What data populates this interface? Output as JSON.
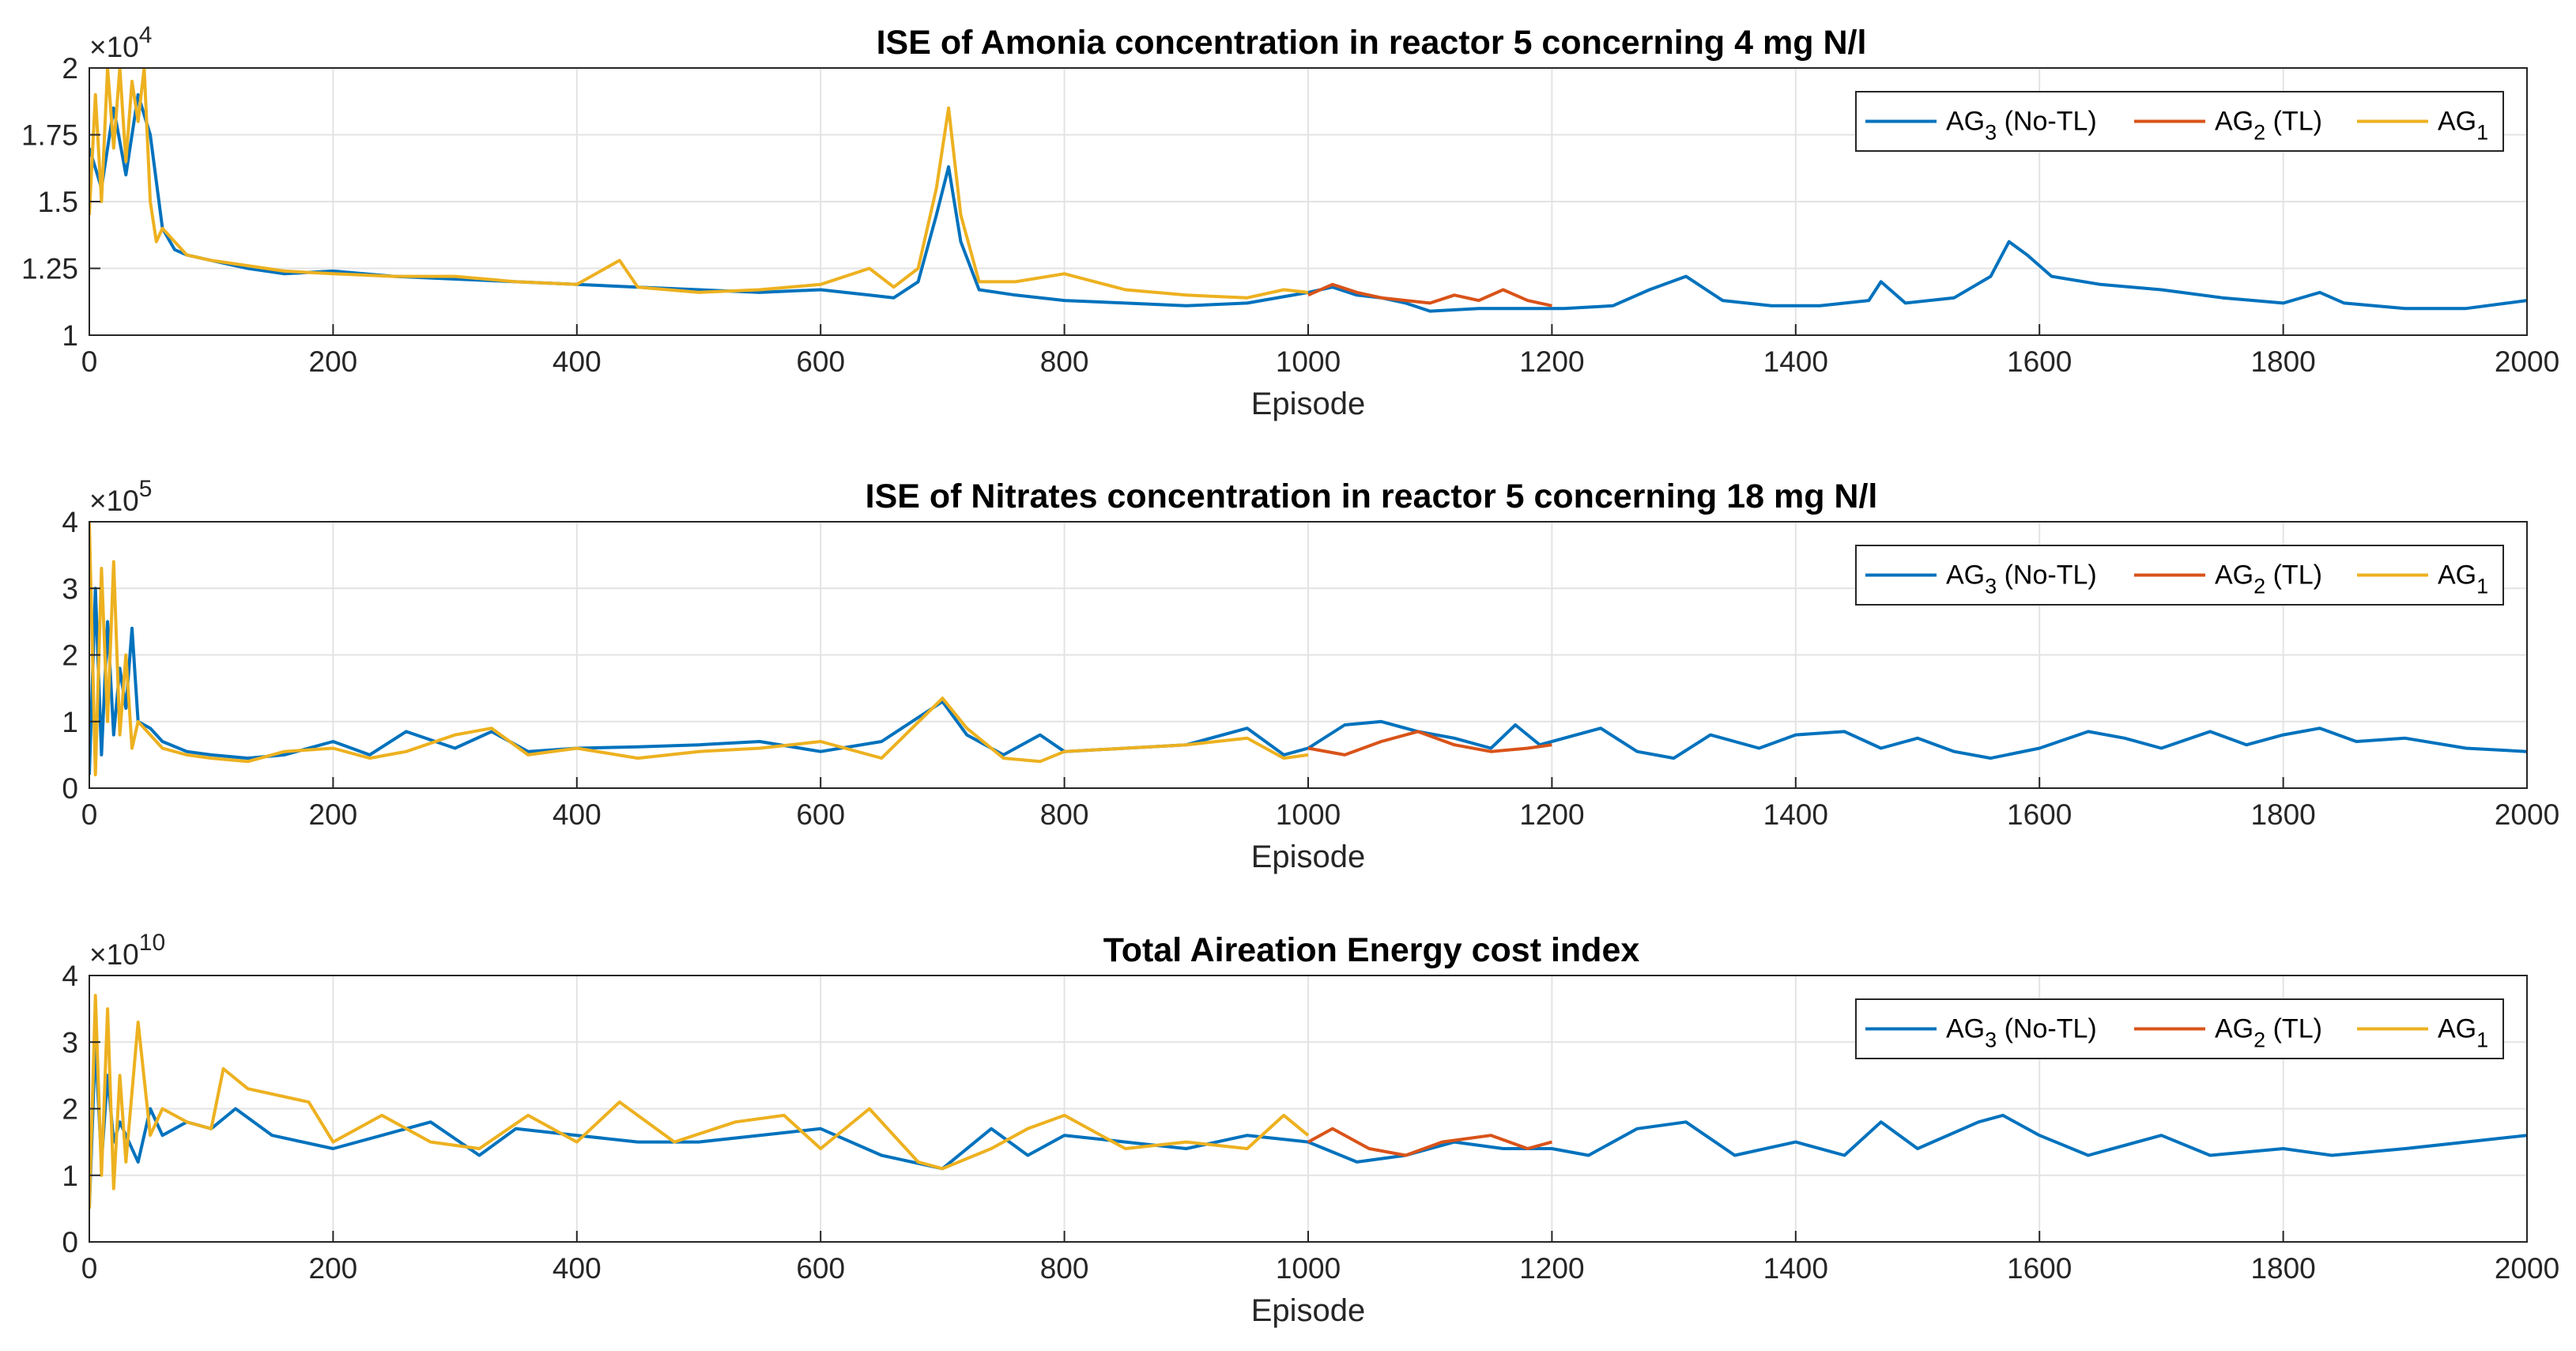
{
  "chart_data": [
    {
      "type": "line",
      "title": "ISE of Amonia concentration in reactor 5 concerning 4 mg N/l",
      "xlabel": "Episode",
      "ylabel": "",
      "xlim": [
        0,
        2000
      ],
      "ylim": [
        10000,
        20000
      ],
      "multiplier_base": "10",
      "multiplier_exp": "4",
      "xticks": [
        0,
        200,
        400,
        600,
        800,
        1000,
        1200,
        1400,
        1600,
        1800,
        2000
      ],
      "xtick_labels": [
        "0",
        "200",
        "400",
        "600",
        "800",
        "1000",
        "1200",
        "1400",
        "1600",
        "1800",
        "2000"
      ],
      "yticks": [
        10000,
        12500,
        15000,
        17500,
        20000
      ],
      "ytick_labels": [
        "1",
        "1.25",
        "1.5",
        "1.75",
        "2"
      ],
      "grid": true,
      "legend_position": "top-right",
      "series": [
        {
          "name": "AG3 (No-TL)",
          "label_main": "AG",
          "label_sub": "3",
          "label_suffix": " (No-TL)",
          "color": "#0072BD",
          "x": [
            0,
            10,
            20,
            30,
            40,
            50,
            60,
            70,
            80,
            100,
            130,
            160,
            200,
            250,
            300,
            350,
            400,
            450,
            500,
            550,
            600,
            640,
            660,
            680,
            695,
            705,
            715,
            730,
            760,
            800,
            850,
            900,
            950,
            1000,
            1020,
            1040,
            1060,
            1080,
            1100,
            1140,
            1180,
            1210,
            1250,
            1280,
            1310,
            1340,
            1380,
            1420,
            1460,
            1470,
            1490,
            1530,
            1560,
            1575,
            1590,
            1610,
            1650,
            1700,
            1750,
            1800,
            1830,
            1850,
            1900,
            1950,
            2000
          ],
          "y": [
            17000,
            15500,
            18500,
            16000,
            19000,
            17500,
            14000,
            13200,
            13000,
            12800,
            12500,
            12300,
            12400,
            12200,
            12100,
            12000,
            11900,
            11800,
            11700,
            11600,
            11700,
            11500,
            11400,
            12000,
            14500,
            16300,
            13500,
            11700,
            11500,
            11300,
            11200,
            11100,
            11200,
            11600,
            11800,
            11500,
            11400,
            11200,
            10900,
            11000,
            11000,
            11000,
            11100,
            11700,
            12200,
            11300,
            11100,
            11100,
            11300,
            12000,
            11200,
            11400,
            12200,
            13500,
            13000,
            12200,
            11900,
            11700,
            11400,
            11200,
            11600,
            11200,
            11000,
            11000,
            11300
          ]
        },
        {
          "name": "AG2 (TL)",
          "label_main": "AG",
          "label_sub": "2",
          "label_suffix": " (TL)",
          "color": "#D95319",
          "x": [
            1000,
            1020,
            1040,
            1060,
            1080,
            1100,
            1120,
            1140,
            1160,
            1180,
            1200
          ],
          "y": [
            11500,
            11900,
            11600,
            11400,
            11300,
            11200,
            11500,
            11300,
            11700,
            11300,
            11100
          ]
        },
        {
          "name": "AG1",
          "label_main": "AG",
          "label_sub": "1",
          "label_suffix": "",
          "color": "#EDB120",
          "x": [
            0,
            5,
            10,
            15,
            20,
            25,
            30,
            35,
            40,
            45,
            50,
            55,
            60,
            70,
            80,
            100,
            130,
            160,
            200,
            250,
            300,
            350,
            400,
            435,
            450,
            500,
            550,
            600,
            640,
            660,
            680,
            695,
            705,
            715,
            730,
            760,
            800,
            850,
            900,
            950,
            980,
            1000
          ],
          "y": [
            14500,
            19000,
            15000,
            20000,
            17000,
            20000,
            16500,
            19500,
            18000,
            20000,
            15000,
            13500,
            14000,
            13500,
            13000,
            12800,
            12600,
            12400,
            12300,
            12200,
            12200,
            12000,
            11900,
            12800,
            11800,
            11600,
            11700,
            11900,
            12500,
            11800,
            12500,
            15500,
            18500,
            14500,
            12000,
            12000,
            12300,
            11700,
            11500,
            11400,
            11700,
            11600
          ]
        }
      ]
    },
    {
      "type": "line",
      "title": "ISE of Nitrates concentration in reactor 5 concerning 18 mg N/l",
      "xlabel": "Episode",
      "ylabel": "",
      "xlim": [
        0,
        2000
      ],
      "ylim": [
        0,
        400000
      ],
      "multiplier_base": "10",
      "multiplier_exp": "5",
      "xticks": [
        0,
        200,
        400,
        600,
        800,
        1000,
        1200,
        1400,
        1600,
        1800,
        2000
      ],
      "xtick_labels": [
        "0",
        "200",
        "400",
        "600",
        "800",
        "1000",
        "1200",
        "1400",
        "1600",
        "1800",
        "2000"
      ],
      "yticks": [
        0,
        100000,
        200000,
        300000,
        400000
      ],
      "ytick_labels": [
        "0",
        "1",
        "2",
        "3",
        "4"
      ],
      "grid": true,
      "legend_position": "top-right",
      "series": [
        {
          "name": "AG3 (No-TL)",
          "label_main": "AG",
          "label_sub": "3",
          "label_suffix": " (No-TL)",
          "color": "#0072BD",
          "x": [
            0,
            5,
            10,
            15,
            20,
            25,
            30,
            35,
            40,
            50,
            60,
            80,
            100,
            130,
            160,
            200,
            230,
            260,
            300,
            330,
            360,
            400,
            450,
            500,
            550,
            600,
            650,
            700,
            720,
            750,
            780,
            800,
            850,
            900,
            950,
            980,
            1000,
            1030,
            1060,
            1090,
            1120,
            1150,
            1170,
            1190,
            1220,
            1240,
            1270,
            1300,
            1330,
            1370,
            1400,
            1440,
            1470,
            1500,
            1530,
            1560,
            1600,
            1640,
            1670,
            1700,
            1740,
            1770,
            1800,
            1830,
            1860,
            1900,
            1950,
            2000
          ],
          "y": [
            20000,
            300000,
            50000,
            250000,
            80000,
            180000,
            120000,
            240000,
            100000,
            90000,
            70000,
            55000,
            50000,
            45000,
            50000,
            70000,
            50000,
            85000,
            60000,
            85000,
            55000,
            60000,
            62000,
            65000,
            70000,
            55000,
            70000,
            130000,
            80000,
            50000,
            80000,
            55000,
            60000,
            65000,
            90000,
            50000,
            60000,
            95000,
            100000,
            85000,
            75000,
            60000,
            95000,
            65000,
            80000,
            90000,
            55000,
            45000,
            80000,
            60000,
            80000,
            85000,
            60000,
            75000,
            55000,
            45000,
            60000,
            85000,
            75000,
            60000,
            85000,
            65000,
            80000,
            90000,
            70000,
            75000,
            60000,
            55000
          ]
        },
        {
          "name": "AG2 (TL)",
          "label_main": "AG",
          "label_sub": "2",
          "label_suffix": " (TL)",
          "color": "#D95319",
          "x": [
            1000,
            1030,
            1060,
            1090,
            1120,
            1150,
            1180,
            1200
          ],
          "y": [
            60000,
            50000,
            70000,
            85000,
            65000,
            55000,
            60000,
            65000
          ]
        },
        {
          "name": "AG1",
          "label_main": "AG",
          "label_sub": "1",
          "label_suffix": "",
          "color": "#EDB120",
          "x": [
            0,
            5,
            10,
            15,
            20,
            25,
            30,
            35,
            40,
            50,
            60,
            80,
            100,
            130,
            160,
            200,
            230,
            260,
            300,
            330,
            360,
            400,
            450,
            500,
            550,
            600,
            650,
            700,
            720,
            750,
            780,
            800,
            850,
            900,
            950,
            980,
            1000
          ],
          "y": [
            400000,
            20000,
            330000,
            100000,
            340000,
            80000,
            200000,
            60000,
            100000,
            80000,
            60000,
            50000,
            45000,
            40000,
            55000,
            60000,
            45000,
            55000,
            80000,
            90000,
            50000,
            60000,
            45000,
            55000,
            60000,
            70000,
            45000,
            135000,
            90000,
            45000,
            40000,
            55000,
            60000,
            65000,
            75000,
            45000,
            50000
          ]
        }
      ]
    },
    {
      "type": "line",
      "title": "Total Aireation Energy cost index",
      "xlabel": "Episode",
      "ylabel": "",
      "xlim": [
        0,
        2000
      ],
      "ylim": [
        0,
        40000000000
      ],
      "multiplier_base": "10",
      "multiplier_exp": "10",
      "xticks": [
        0,
        200,
        400,
        600,
        800,
        1000,
        1200,
        1400,
        1600,
        1800,
        2000
      ],
      "xtick_labels": [
        "0",
        "200",
        "400",
        "600",
        "800",
        "1000",
        "1200",
        "1400",
        "1600",
        "1800",
        "2000"
      ],
      "yticks": [
        0,
        10000000000,
        20000000000,
        30000000000,
        40000000000
      ],
      "ytick_labels": [
        "0",
        "1",
        "2",
        "3",
        "4"
      ],
      "grid": true,
      "legend_position": "top-right",
      "series": [
        {
          "name": "AG3 (No-TL)",
          "label_main": "AG",
          "label_sub": "3",
          "label_suffix": " (No-TL)",
          "color": "#0072BD",
          "x": [
            0,
            5,
            10,
            15,
            20,
            25,
            30,
            40,
            50,
            60,
            80,
            100,
            120,
            150,
            200,
            240,
            280,
            320,
            350,
            400,
            450,
            500,
            550,
            600,
            650,
            700,
            740,
            770,
            800,
            850,
            900,
            950,
            1000,
            1040,
            1080,
            1120,
            1160,
            1200,
            1230,
            1270,
            1310,
            1350,
            1400,
            1440,
            1470,
            1500,
            1550,
            1570,
            1600,
            1640,
            1700,
            1740,
            1800,
            1840,
            1900,
            1950,
            2000
          ],
          "y": [
            5000000000,
            30000000000,
            12000000000,
            25000000000,
            15000000000,
            18000000000,
            16000000000,
            12000000000,
            20000000000,
            16000000000,
            18000000000,
            17000000000,
            20000000000,
            16000000000,
            14000000000,
            16000000000,
            18000000000,
            13000000000,
            17000000000,
            16000000000,
            15000000000,
            15000000000,
            16000000000,
            17000000000,
            13000000000,
            11000000000,
            17000000000,
            13000000000,
            16000000000,
            15000000000,
            14000000000,
            16000000000,
            15000000000,
            12000000000,
            13000000000,
            15000000000,
            14000000000,
            14000000000,
            13000000000,
            17000000000,
            18000000000,
            13000000000,
            15000000000,
            13000000000,
            18000000000,
            14000000000,
            18000000000,
            19000000000,
            16000000000,
            13000000000,
            16000000000,
            13000000000,
            14000000000,
            13000000000,
            14000000000,
            15000000000,
            16000000000
          ]
        },
        {
          "name": "AG2 (TL)",
          "label_main": "AG",
          "label_sub": "2",
          "label_suffix": " (TL)",
          "color": "#D95319",
          "x": [
            1000,
            1020,
            1050,
            1080,
            1110,
            1150,
            1180,
            1200
          ],
          "y": [
            15000000000,
            17000000000,
            14000000000,
            13000000000,
            15000000000,
            16000000000,
            14000000000,
            15000000000
          ]
        },
        {
          "name": "AG1",
          "label_main": "AG",
          "label_sub": "1",
          "label_suffix": "",
          "color": "#EDB120",
          "x": [
            0,
            5,
            10,
            15,
            20,
            25,
            30,
            40,
            50,
            60,
            80,
            100,
            110,
            130,
            180,
            200,
            240,
            280,
            320,
            360,
            400,
            435,
            480,
            530,
            570,
            600,
            640,
            680,
            700,
            740,
            770,
            800,
            850,
            900,
            950,
            980,
            1000
          ],
          "y": [
            5000000000,
            37000000000,
            10000000000,
            35000000000,
            8000000000,
            25000000000,
            12000000000,
            33000000000,
            16000000000,
            20000000000,
            18000000000,
            17000000000,
            26000000000,
            23000000000,
            21000000000,
            15000000000,
            19000000000,
            15000000000,
            14000000000,
            19000000000,
            15000000000,
            21000000000,
            15000000000,
            18000000000,
            19000000000,
            14000000000,
            20000000000,
            12000000000,
            11000000000,
            14000000000,
            17000000000,
            19000000000,
            14000000000,
            15000000000,
            14000000000,
            19000000000,
            16000000000
          ]
        }
      ]
    }
  ]
}
